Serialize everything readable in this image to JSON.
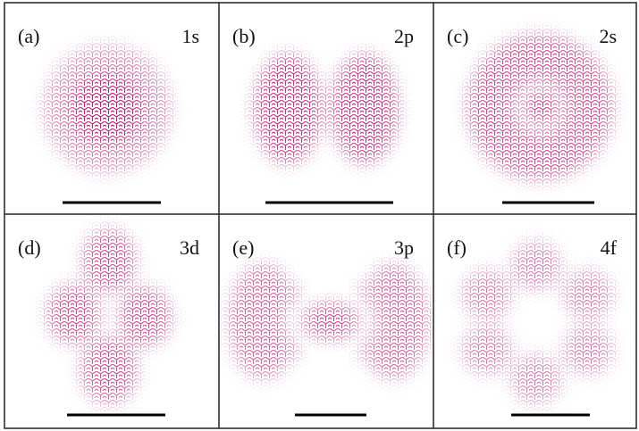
{
  "panels": [
    {
      "label": "(a)",
      "orbital": "1s"
    },
    {
      "label": "(b)",
      "orbital": "2p"
    },
    {
      "label": "(c)",
      "orbital": "2s"
    },
    {
      "label": "(d)",
      "orbital": "3d"
    },
    {
      "label": "(e)",
      "orbital": "3p"
    },
    {
      "label": "(f)",
      "orbital": "4f"
    }
  ]
}
